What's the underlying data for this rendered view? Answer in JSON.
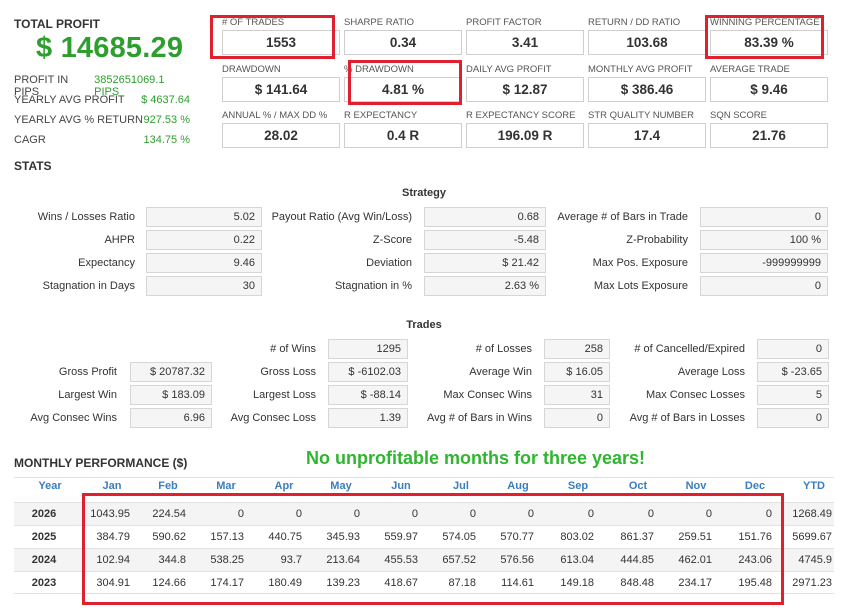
{
  "summary": {
    "total_profit_label": "TOTAL PROFIT",
    "total_profit_value": "$ 14685.29",
    "rows": [
      {
        "label": "PROFIT IN PIPS",
        "value": "3852651069.1 PIPS"
      },
      {
        "label": "YEARLY AVG PROFIT",
        "value": "$ 4637.64"
      },
      {
        "label": "YEARLY AVG % RETURN",
        "value": "927.53 %"
      },
      {
        "label": "CAGR",
        "value": "134.75 %"
      }
    ]
  },
  "metrics": [
    {
      "label": "# OF TRADES",
      "value": "1553"
    },
    {
      "label": "SHARPE RATIO",
      "value": "0.34"
    },
    {
      "label": "PROFIT FACTOR",
      "value": "3.41"
    },
    {
      "label": "RETURN / DD RATIO",
      "value": "103.68"
    },
    {
      "label": "WINNING PERCENTAGE",
      "value": "83.39 %"
    },
    {
      "label": "DRAWDOWN",
      "value": "$ 141.64"
    },
    {
      "label": "% DRAWDOWN",
      "value": "4.81 %"
    },
    {
      "label": "DAILY AVG PROFIT",
      "value": "$ 12.87"
    },
    {
      "label": "MONTHLY AVG PROFIT",
      "value": "$ 386.46"
    },
    {
      "label": "AVERAGE TRADE",
      "value": "$ 9.46"
    },
    {
      "label": "ANNUAL % / MAX DD %",
      "value": "28.02"
    },
    {
      "label": "R EXPECTANCY",
      "value": "0.4 R"
    },
    {
      "label": "R EXPECTANCY SCORE",
      "value": "196.09 R"
    },
    {
      "label": "STR QUALITY NUMBER",
      "value": "17.4"
    },
    {
      "label": "SQN SCORE",
      "value": "21.76"
    }
  ],
  "stats_title": "STATS",
  "strategy": {
    "title": "Strategy",
    "col1": [
      {
        "label": "Wins / Losses Ratio",
        "value": "5.02"
      },
      {
        "label": "AHPR",
        "value": "0.22"
      },
      {
        "label": "Expectancy",
        "value": "9.46"
      },
      {
        "label": "Stagnation in Days",
        "value": "30"
      }
    ],
    "col2": [
      {
        "label": "Payout Ratio (Avg Win/Loss)",
        "value": "0.68"
      },
      {
        "label": "Z-Score",
        "value": "-5.48"
      },
      {
        "label": "Deviation",
        "value": "$ 21.42"
      },
      {
        "label": "Stagnation in %",
        "value": "2.63 %"
      }
    ],
    "col3": [
      {
        "label": "Average # of Bars in Trade",
        "value": "0"
      },
      {
        "label": "Z-Probability",
        "value": "100 %"
      },
      {
        "label": "Max Pos. Exposure",
        "value": "-999999999"
      },
      {
        "label": "Max Lots Exposure",
        "value": "0"
      }
    ]
  },
  "trades": {
    "title": "Trades",
    "col1": [
      {
        "label": "",
        "value": ""
      },
      {
        "label": "Gross Profit",
        "value": "$ 20787.32"
      },
      {
        "label": "Largest Win",
        "value": "$ 183.09"
      },
      {
        "label": "Avg Consec Wins",
        "value": "6.96"
      }
    ],
    "col2": [
      {
        "label": "# of Wins",
        "value": "1295"
      },
      {
        "label": "Gross Loss",
        "value": "$ -6102.03"
      },
      {
        "label": "Largest Loss",
        "value": "$ -88.14"
      },
      {
        "label": "Avg Consec Loss",
        "value": "1.39"
      }
    ],
    "col3": [
      {
        "label": "# of Losses",
        "value": "258"
      },
      {
        "label": "Average Win",
        "value": "$ 16.05"
      },
      {
        "label": "Max Consec Wins",
        "value": "31"
      },
      {
        "label": "Avg # of Bars in Wins",
        "value": "0"
      }
    ],
    "col4": [
      {
        "label": "# of Cancelled/Expired",
        "value": "0"
      },
      {
        "label": "Average Loss",
        "value": "$ -23.65"
      },
      {
        "label": "Max Consec Losses",
        "value": "5"
      },
      {
        "label": "Avg # of Bars in Losses",
        "value": "0"
      }
    ]
  },
  "monthly": {
    "title": "MONTHLY PERFORMANCE ($)",
    "banner": "No unprofitable months for three years!",
    "headers": [
      "Year",
      "Jan",
      "Feb",
      "Mar",
      "Apr",
      "May",
      "Jun",
      "Jul",
      "Aug",
      "Sep",
      "Oct",
      "Nov",
      "Dec",
      "YTD"
    ],
    "rows": [
      {
        "year": "2026",
        "values": [
          "1043.95",
          "224.54",
          "0",
          "0",
          "0",
          "0",
          "0",
          "0",
          "0",
          "0",
          "0",
          "0",
          "1268.49"
        ]
      },
      {
        "year": "2025",
        "values": [
          "384.79",
          "590.62",
          "157.13",
          "440.75",
          "345.93",
          "559.97",
          "574.05",
          "570.77",
          "803.02",
          "861.37",
          "259.51",
          "151.76",
          "5699.67"
        ]
      },
      {
        "year": "2024",
        "values": [
          "102.94",
          "344.8",
          "538.25",
          "93.7",
          "213.64",
          "455.53",
          "657.52",
          "576.56",
          "613.04",
          "444.85",
          "462.01",
          "243.06",
          "4745.9"
        ]
      },
      {
        "year": "2023",
        "values": [
          "304.91",
          "124.66",
          "174.17",
          "180.49",
          "139.23",
          "418.67",
          "87.18",
          "114.61",
          "149.18",
          "848.48",
          "234.17",
          "195.48",
          "2971.23"
        ]
      }
    ]
  },
  "colors": {
    "green": "#2e9e2e",
    "banner_green": "#2fb52f",
    "highlight_red": "#e0202c",
    "header_blue": "#3c7dbf"
  }
}
